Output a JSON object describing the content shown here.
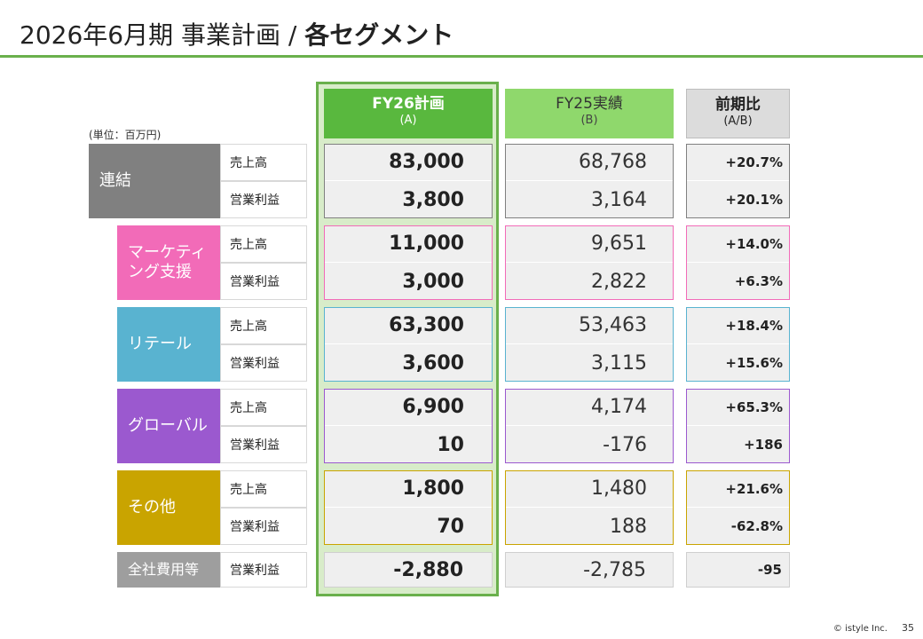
{
  "title": {
    "main": "2026年6月期 事業計画 / ",
    "bold": "各セグメント"
  },
  "unit": "(単位：百万円)",
  "columns": {
    "plan": {
      "line1": "FY26計画",
      "line2": "(A)"
    },
    "prev": {
      "line1": "FY25実績",
      "line2": "(B)"
    },
    "ratio": {
      "line1": "前期比",
      "line2": "(A/B)"
    }
  },
  "segments": [
    {
      "label": "連結",
      "color": "#808080",
      "rows": [
        {
          "metric": "売上高",
          "plan": "83,000",
          "prev": "68,768",
          "ratio": "+20.7%"
        },
        {
          "metric": "営業利益",
          "plan": "3,800",
          "prev": "3,164",
          "ratio": "+20.1%"
        }
      ]
    },
    {
      "label": "マーケティング支援",
      "color": "#f26bb8",
      "rows": [
        {
          "metric": "売上高",
          "plan": "11,000",
          "prev": "9,651",
          "ratio": "+14.0%"
        },
        {
          "metric": "営業利益",
          "plan": "3,000",
          "prev": "2,822",
          "ratio": "+6.3%"
        }
      ]
    },
    {
      "label": "リテール",
      "color": "#59b3d0",
      "rows": [
        {
          "metric": "売上高",
          "plan": "63,300",
          "prev": "53,463",
          "ratio": "+18.4%"
        },
        {
          "metric": "営業利益",
          "plan": "3,600",
          "prev": "3,115",
          "ratio": "+15.6%"
        }
      ]
    },
    {
      "label": "グローバル",
      "color": "#9b59cf",
      "rows": [
        {
          "metric": "売上高",
          "plan": "6,900",
          "prev": "4,174",
          "ratio": "+65.3%"
        },
        {
          "metric": "営業利益",
          "plan": "10",
          "prev": "-176",
          "ratio": "+186"
        }
      ]
    },
    {
      "label": "その他",
      "color": "#c9a400",
      "rows": [
        {
          "metric": "売上高",
          "plan": "1,800",
          "prev": "1,480",
          "ratio": "+21.6%"
        },
        {
          "metric": "営業利益",
          "plan": "70",
          "prev": "188",
          "ratio": "-62.8%"
        }
      ]
    }
  ],
  "corporate": {
    "label": "全社費用等",
    "metric": "営業利益",
    "plan": "-2,880",
    "prev": "-2,785",
    "ratio": "-95"
  },
  "footer": {
    "copyright": "© istyle Inc.",
    "page": "35"
  },
  "colors": {
    "accent": "#6ab04c",
    "plan_header": "#59b83e",
    "prev_header": "#8fd86c"
  }
}
